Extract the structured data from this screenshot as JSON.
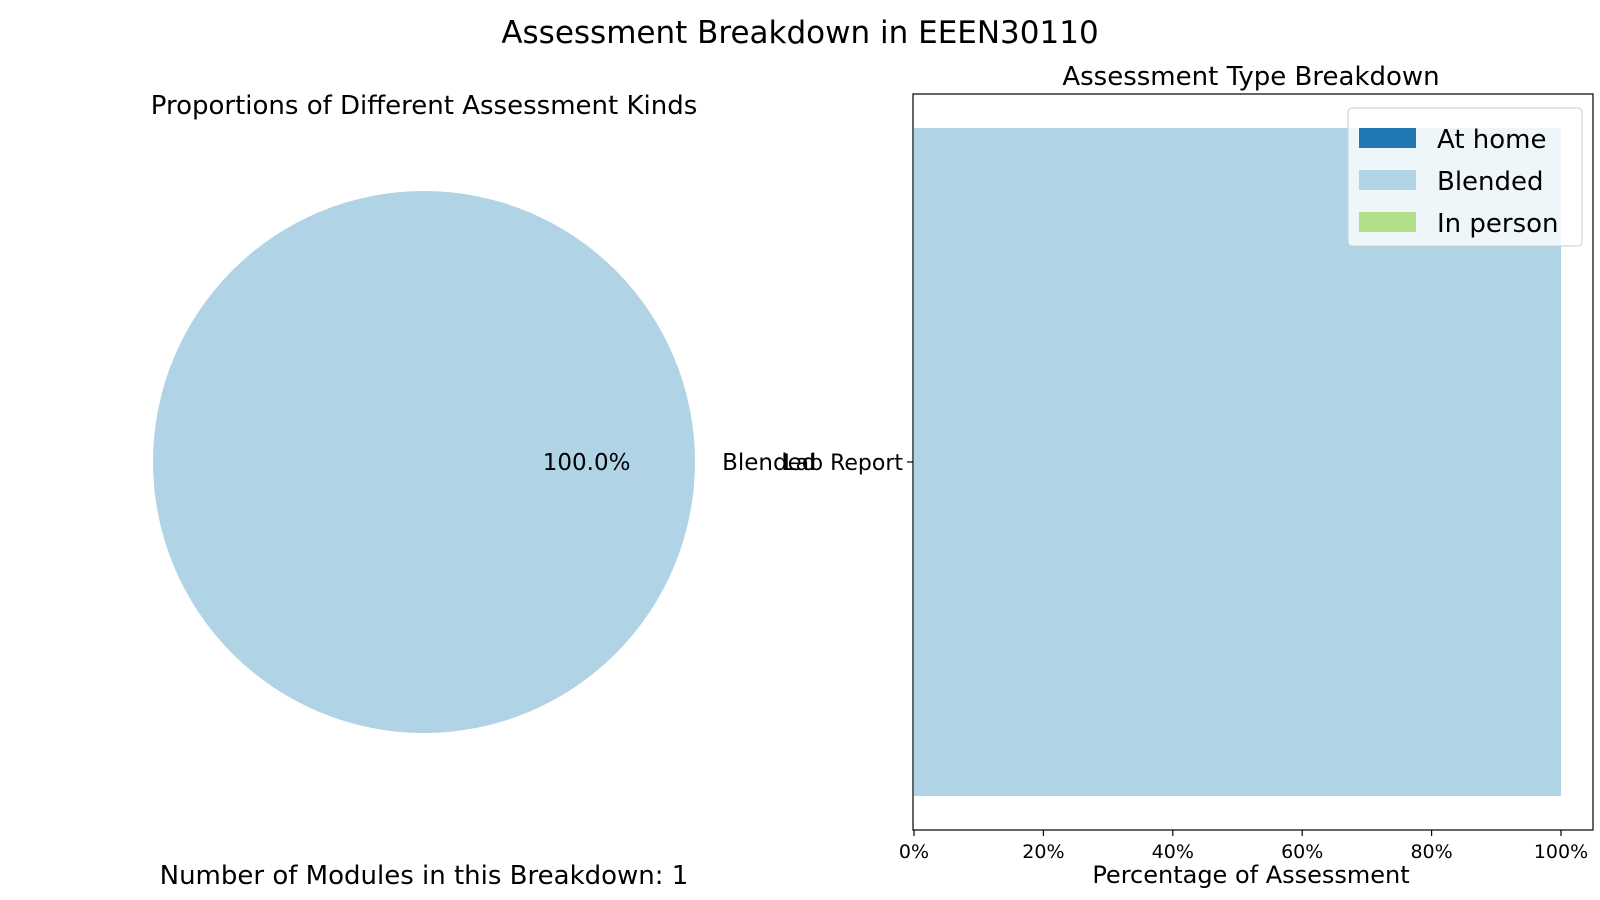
{
  "figure": {
    "suptitle": "Assessment Breakdown in EEEN30110",
    "footer": "Number of Modules in this Breakdown: 1"
  },
  "colors": {
    "at_home": "#1f78b4",
    "blended": "#b0d3e5",
    "in_person": "#b2df8a",
    "axis": "#000000",
    "legend_bg": "#ffffff"
  },
  "chart_data": [
    {
      "type": "pie",
      "title": "Proportions of Different Assessment Kinds",
      "slices": [
        {
          "label": "Blended",
          "value": 100.0,
          "pct_label": "100.0%",
          "color_key": "blended"
        }
      ]
    },
    {
      "type": "bar",
      "orientation": "horizontal",
      "stacked": true,
      "title": "Assessment Type Breakdown",
      "xlabel": "Percentage of Assessment",
      "ylabel": "",
      "categories": [
        "Lab Report"
      ],
      "xlim": [
        0,
        100
      ],
      "xticks": [
        0,
        20,
        40,
        60,
        80,
        100
      ],
      "xtick_labels": [
        "0%",
        "20%",
        "40%",
        "60%",
        "80%",
        "100%"
      ],
      "series": [
        {
          "name": "At home",
          "values": [
            0
          ],
          "color_key": "at_home"
        },
        {
          "name": "Blended",
          "values": [
            100
          ],
          "color_key": "blended"
        },
        {
          "name": "In person",
          "values": [
            0
          ],
          "color_key": "in_person"
        }
      ],
      "legend": "top-right",
      "grid": false
    }
  ]
}
